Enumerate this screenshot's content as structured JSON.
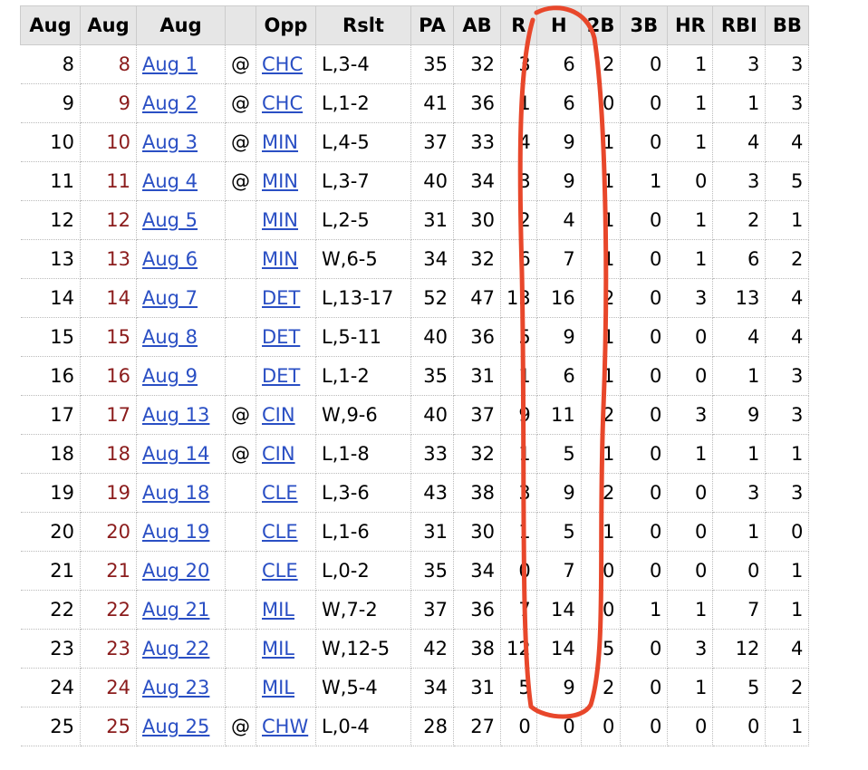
{
  "table": {
    "header": [
      "Aug",
      "Aug",
      "Aug",
      null,
      "Opp",
      "Rslt",
      "PA",
      "AB",
      "R",
      "H",
      "2B",
      "3B",
      "HR",
      "RBI",
      "BB"
    ],
    "rows": [
      [
        8,
        8,
        "Aug 1",
        "@",
        "CHC",
        "L,3-4",
        35,
        32,
        3,
        6,
        2,
        0,
        1,
        3,
        3
      ],
      [
        9,
        9,
        "Aug 2",
        "@",
        "CHC",
        "L,1-2",
        41,
        36,
        1,
        6,
        0,
        0,
        1,
        1,
        3
      ],
      [
        10,
        10,
        "Aug 3",
        "@",
        "MIN",
        "L,4-5",
        37,
        33,
        4,
        9,
        1,
        0,
        1,
        4,
        4
      ],
      [
        11,
        11,
        "Aug 4",
        "@",
        "MIN",
        "L,3-7",
        40,
        34,
        3,
        9,
        1,
        1,
        0,
        3,
        5
      ],
      [
        12,
        12,
        "Aug 5",
        null,
        "MIN",
        "L,2-5",
        31,
        30,
        2,
        4,
        1,
        0,
        1,
        2,
        1
      ],
      [
        13,
        13,
        "Aug 6",
        null,
        "MIN",
        "W,6-5",
        34,
        32,
        6,
        7,
        1,
        0,
        1,
        6,
        2
      ],
      [
        14,
        14,
        "Aug 7",
        null,
        "DET",
        "L,13-17",
        52,
        47,
        13,
        16,
        2,
        0,
        3,
        13,
        4
      ],
      [
        15,
        15,
        "Aug 8",
        null,
        "DET",
        "L,5-11",
        40,
        36,
        5,
        9,
        1,
        0,
        0,
        4,
        4
      ],
      [
        16,
        16,
        "Aug 9",
        null,
        "DET",
        "L,1-2",
        35,
        31,
        1,
        6,
        1,
        0,
        0,
        1,
        3
      ],
      [
        17,
        17,
        "Aug 13",
        "@",
        "CIN",
        "W,9-6",
        40,
        37,
        9,
        11,
        2,
        0,
        3,
        9,
        3
      ],
      [
        18,
        18,
        "Aug 14",
        "@",
        "CIN",
        "L,1-8",
        33,
        32,
        1,
        5,
        1,
        0,
        1,
        1,
        1
      ],
      [
        19,
        19,
        "Aug 18",
        null,
        "CLE",
        "L,3-6",
        43,
        38,
        3,
        9,
        2,
        0,
        0,
        3,
        3
      ],
      [
        20,
        20,
        "Aug 19",
        null,
        "CLE",
        "L,1-6",
        31,
        30,
        1,
        5,
        1,
        0,
        0,
        1,
        0
      ],
      [
        21,
        21,
        "Aug 20",
        null,
        "CLE",
        "L,0-2",
        35,
        34,
        0,
        7,
        0,
        0,
        0,
        0,
        1
      ],
      [
        22,
        22,
        "Aug 21",
        null,
        "MIL",
        "W,7-2",
        37,
        36,
        7,
        14,
        0,
        1,
        1,
        7,
        1
      ],
      [
        23,
        23,
        "Aug 22",
        null,
        "MIL",
        "W,12-5",
        42,
        38,
        12,
        14,
        5,
        0,
        3,
        12,
        4
      ],
      [
        24,
        24,
        "Aug 23",
        null,
        "MIL",
        "W,5-4",
        34,
        31,
        5,
        9,
        2,
        0,
        1,
        5,
        2
      ],
      [
        25,
        25,
        "Aug 25",
        "@",
        "CHW",
        "L,0-4",
        28,
        27,
        0,
        0,
        0,
        0,
        0,
        0,
        1
      ]
    ]
  }
}
